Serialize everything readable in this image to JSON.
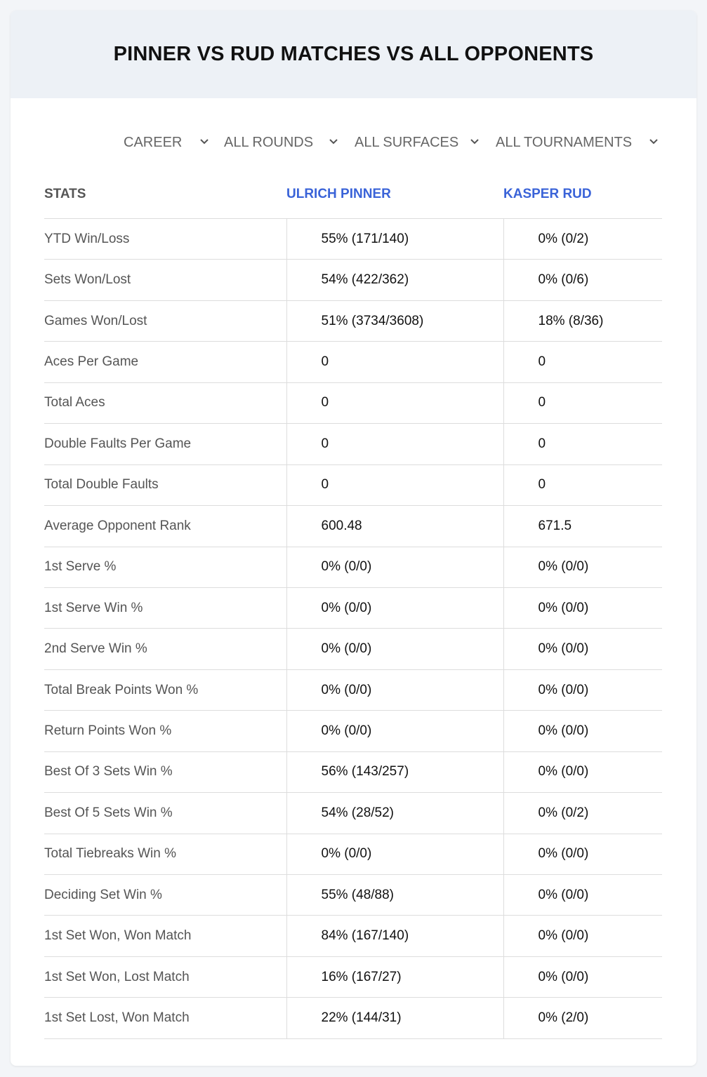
{
  "header": {
    "title": "PINNER VS RUD MATCHES VS ALL OPPONENTS"
  },
  "filters": [
    "CAREER",
    "ALL ROUNDS",
    "ALL SURFACES",
    "ALL TOURNAMENTS"
  ],
  "table": {
    "columns": [
      "STATS",
      "ULRICH PINNER",
      "KASPER RUD"
    ],
    "rows": [
      [
        "YTD Win/Loss",
        "55% (171/140)",
        "0% (0/2)"
      ],
      [
        "Sets Won/Lost",
        "54% (422/362)",
        "0% (0/6)"
      ],
      [
        "Games Won/Lost",
        "51% (3734/3608)",
        "18% (8/36)"
      ],
      [
        "Aces Per Game",
        "0",
        "0"
      ],
      [
        "Total Aces",
        "0",
        "0"
      ],
      [
        "Double Faults Per Game",
        "0",
        "0"
      ],
      [
        "Total Double Faults",
        "0",
        "0"
      ],
      [
        "Average Opponent Rank",
        "600.48",
        "671.5"
      ],
      [
        "1st Serve %",
        "0% (0/0)",
        "0% (0/0)"
      ],
      [
        "1st Serve Win %",
        "0% (0/0)",
        "0% (0/0)"
      ],
      [
        "2nd Serve Win %",
        "0% (0/0)",
        "0% (0/0)"
      ],
      [
        "Total Break Points Won %",
        "0% (0/0)",
        "0% (0/0)"
      ],
      [
        "Return Points Won %",
        "0% (0/0)",
        "0% (0/0)"
      ],
      [
        "Best Of 3 Sets Win %",
        "56% (143/257)",
        "0% (0/0)"
      ],
      [
        "Best Of 5 Sets Win %",
        "54% (28/52)",
        "0% (0/2)"
      ],
      [
        "Total Tiebreaks Win %",
        "0% (0/0)",
        "0% (0/0)"
      ],
      [
        "Deciding Set Win %",
        "55% (48/88)",
        "0% (0/0)"
      ],
      [
        "1st Set Won, Won Match",
        "84% (167/140)",
        "0% (0/0)"
      ],
      [
        "1st Set Won, Lost Match",
        "16% (167/27)",
        "0% (0/0)"
      ],
      [
        "1st Set Lost, Won Match",
        "22% (144/31)",
        "0% (2/0)"
      ]
    ]
  }
}
